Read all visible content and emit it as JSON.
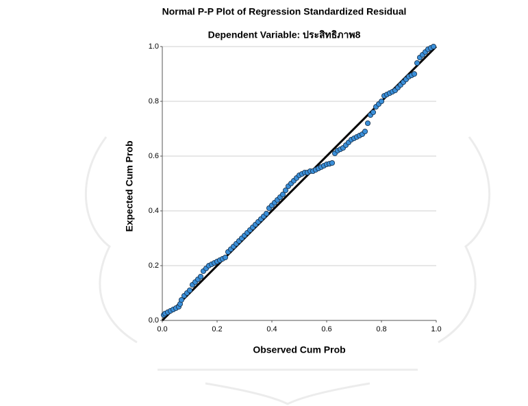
{
  "chart_data": {
    "type": "scatter",
    "title": "Normal P-P Plot of Regression Standardized Residual",
    "subtitle": "Dependent Variable: ประสิทธิภาพ8",
    "xlabel": "Observed Cum Prob",
    "ylabel": "Expected Cum Prob",
    "xlim": [
      0,
      1
    ],
    "ylim": [
      0,
      1
    ],
    "xticks": [
      {
        "value": 0,
        "label": "0.0"
      },
      0.2,
      0.4,
      0.6,
      0.8,
      {
        "value": 1,
        "label": "1.0"
      }
    ],
    "yticks": [
      {
        "value": 0,
        "label": "0.0"
      },
      0.2,
      0.4,
      0.6,
      0.8,
      {
        "value": 1,
        "label": "1.0"
      }
    ],
    "grid": true,
    "reference_line": true,
    "reference_color": "#000000",
    "x": [
      0.005,
      0.01,
      0.02,
      0.03,
      0.04,
      0.05,
      0.06,
      0.065,
      0.07,
      0.08,
      0.09,
      0.1,
      0.11,
      0.12,
      0.13,
      0.14,
      0.15,
      0.16,
      0.17,
      0.18,
      0.19,
      0.2,
      0.21,
      0.22,
      0.23,
      0.24,
      0.25,
      0.26,
      0.27,
      0.28,
      0.29,
      0.3,
      0.31,
      0.32,
      0.33,
      0.34,
      0.35,
      0.36,
      0.37,
      0.38,
      0.39,
      0.4,
      0.41,
      0.42,
      0.43,
      0.44,
      0.45,
      0.46,
      0.47,
      0.48,
      0.49,
      0.5,
      0.51,
      0.52,
      0.53,
      0.54,
      0.55,
      0.56,
      0.57,
      0.58,
      0.59,
      0.6,
      0.61,
      0.62,
      0.63,
      0.64,
      0.65,
      0.66,
      0.67,
      0.68,
      0.69,
      0.7,
      0.71,
      0.72,
      0.73,
      0.74,
      0.75,
      0.76,
      0.77,
      0.78,
      0.79,
      0.8,
      0.81,
      0.82,
      0.83,
      0.84,
      0.85,
      0.86,
      0.87,
      0.88,
      0.89,
      0.9,
      0.91,
      0.92,
      0.93,
      0.94,
      0.95,
      0.96,
      0.97,
      0.98,
      0.99
    ],
    "series": [
      {
        "color": "#3a8fd9",
        "values": [
          0.02,
          0.025,
          0.03,
          0.035,
          0.04,
          0.045,
          0.05,
          0.06,
          0.075,
          0.09,
          0.1,
          0.11,
          0.13,
          0.14,
          0.15,
          0.16,
          0.18,
          0.19,
          0.2,
          0.205,
          0.21,
          0.215,
          0.22,
          0.225,
          0.23,
          0.25,
          0.26,
          0.27,
          0.28,
          0.29,
          0.3,
          0.31,
          0.32,
          0.33,
          0.34,
          0.35,
          0.36,
          0.37,
          0.38,
          0.39,
          0.41,
          0.42,
          0.43,
          0.44,
          0.45,
          0.46,
          0.475,
          0.49,
          0.5,
          0.51,
          0.52,
          0.53,
          0.535,
          0.54,
          0.54,
          0.545,
          0.545,
          0.55,
          0.555,
          0.56,
          0.565,
          0.57,
          0.572,
          0.575,
          0.61,
          0.62,
          0.625,
          0.63,
          0.64,
          0.65,
          0.66,
          0.665,
          0.67,
          0.675,
          0.68,
          0.69,
          0.72,
          0.75,
          0.76,
          0.78,
          0.79,
          0.8,
          0.82,
          0.825,
          0.83,
          0.835,
          0.84,
          0.85,
          0.86,
          0.87,
          0.88,
          0.89,
          0.895,
          0.9,
          0.94,
          0.96,
          0.97,
          0.98,
          0.99,
          0.995,
          1.0
        ]
      }
    ]
  }
}
